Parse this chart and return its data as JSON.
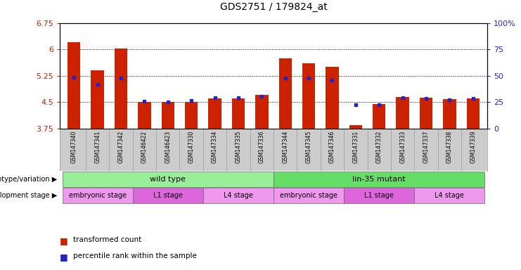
{
  "title": "GDS2751 / 179824_at",
  "samples": [
    "GSM147340",
    "GSM147341",
    "GSM147342",
    "GSM146422",
    "GSM146423",
    "GSM147330",
    "GSM147334",
    "GSM147335",
    "GSM147336",
    "GSM147344",
    "GSM147345",
    "GSM147346",
    "GSM147331",
    "GSM147332",
    "GSM147333",
    "GSM147337",
    "GSM147338",
    "GSM147339"
  ],
  "transformed_count": [
    6.2,
    5.4,
    6.02,
    4.5,
    4.5,
    4.5,
    4.6,
    4.6,
    4.7,
    5.75,
    5.6,
    5.5,
    3.85,
    4.45,
    4.65,
    4.62,
    4.58,
    4.6
  ],
  "percentile_rank": [
    5.2,
    5.0,
    5.18,
    4.52,
    4.51,
    4.54,
    4.62,
    4.62,
    4.67,
    5.18,
    5.18,
    5.12,
    4.43,
    4.43,
    4.62,
    4.6,
    4.57,
    4.6
  ],
  "ylim": [
    3.75,
    6.75
  ],
  "yticks": [
    3.75,
    4.5,
    5.25,
    6.0,
    6.75
  ],
  "ytick_labels": [
    "3.75",
    "4.5",
    "5.25",
    "6",
    "6.75"
  ],
  "right_ytick_labels": [
    "0",
    "25",
    "50",
    "75",
    "100%"
  ],
  "bar_color": "#cc2200",
  "dot_color": "#2222cc",
  "left_axis_color": "#cc2200",
  "right_axis_color": "#2222cc",
  "genotype_groups": [
    {
      "label": "wild type",
      "start": 0,
      "end": 9,
      "color": "#99ee99"
    },
    {
      "label": "lin-35 mutant",
      "start": 9,
      "end": 18,
      "color": "#66dd66"
    }
  ],
  "dev_stage_groups": [
    {
      "label": "embryonic stage",
      "start": 0,
      "end": 3,
      "color": "#ee99ee"
    },
    {
      "label": "L1 stage",
      "start": 3,
      "end": 6,
      "color": "#dd66dd"
    },
    {
      "label": "L4 stage",
      "start": 6,
      "end": 9,
      "color": "#ee99ee"
    },
    {
      "label": "embryonic stage",
      "start": 9,
      "end": 12,
      "color": "#ee99ee"
    },
    {
      "label": "L1 stage",
      "start": 12,
      "end": 15,
      "color": "#dd66dd"
    },
    {
      "label": "L4 stage",
      "start": 15,
      "end": 18,
      "color": "#ee99ee"
    }
  ],
  "xlabel_bg": "#cccccc",
  "bg_color": "#ffffff"
}
